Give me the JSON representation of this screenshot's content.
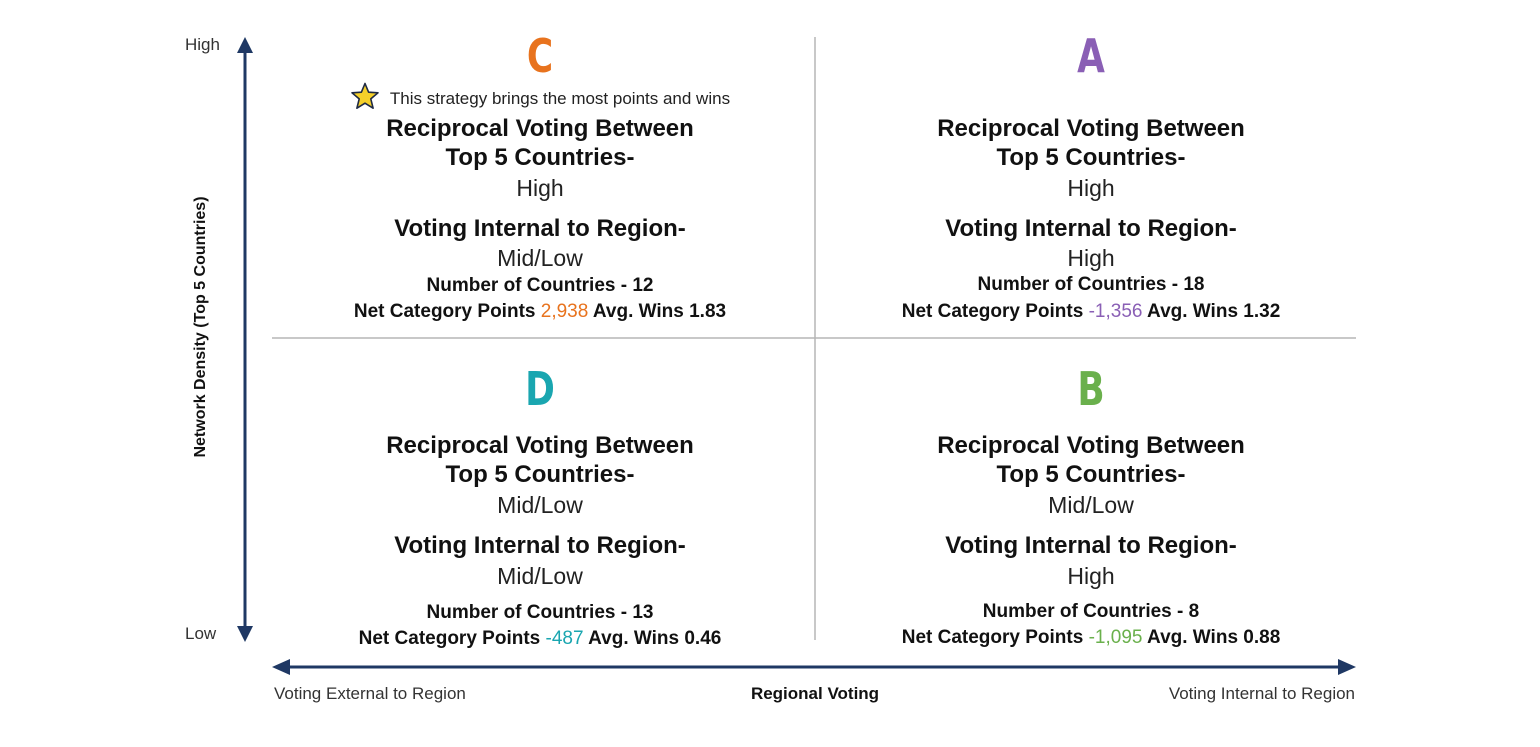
{
  "axes": {
    "y_title": "Network Density (Top 5 Countries)",
    "y_high": "High",
    "y_low": "Low",
    "x_title": "Regional Voting",
    "x_left": "Voting External to Region",
    "x_right": "Voting Internal to Region",
    "line_color": "#1f3864"
  },
  "quadrants": {
    "c": {
      "letter": "C",
      "color": "#e8731e",
      "note": "This strategy brings the most points and wins",
      "heading1a": "Reciprocal Voting Between",
      "heading1b": "Top 5 Countries-",
      "value1": "High",
      "heading2": "Voting Internal to Region-",
      "value2": "Mid/Low",
      "countries": "Number of Countries - 12",
      "points_label": "Net Category Points",
      "points_value": "2,938",
      "wins": "Avg. Wins 1.83"
    },
    "a": {
      "letter": "A",
      "color": "#8a5fb5",
      "heading1a": "Reciprocal Voting Between",
      "heading1b": "Top 5 Countries-",
      "value1": "High",
      "heading2": "Voting Internal to Region-",
      "value2": "High",
      "countries": "Number of Countries - 18",
      "points_label": "Net Category Points",
      "points_value": "-1,356",
      "wins": "Avg. Wins 1.32"
    },
    "d": {
      "letter": "D",
      "color": "#1aa6b0",
      "heading1a": "Reciprocal Voting Between",
      "heading1b": "Top 5 Countries-",
      "value1": "Mid/Low",
      "heading2": "Voting Internal to Region-",
      "value2": "Mid/Low",
      "countries": "Number of Countries - 13",
      "points_label": "Net Category Points",
      "points_value": "-487",
      "wins": "Avg. Wins 0.46"
    },
    "b": {
      "letter": "B",
      "color": "#6ab04c",
      "heading1a": "Reciprocal Voting Between",
      "heading1b": "Top 5 Countries-",
      "value1": "Mid/Low",
      "heading2": "Voting Internal to Region-",
      "value2": "High",
      "countries": "Number of Countries - 8",
      "points_label": "Net Category Points",
      "points_value": "-1,095",
      "wins": "Avg. Wins 0.88"
    }
  }
}
